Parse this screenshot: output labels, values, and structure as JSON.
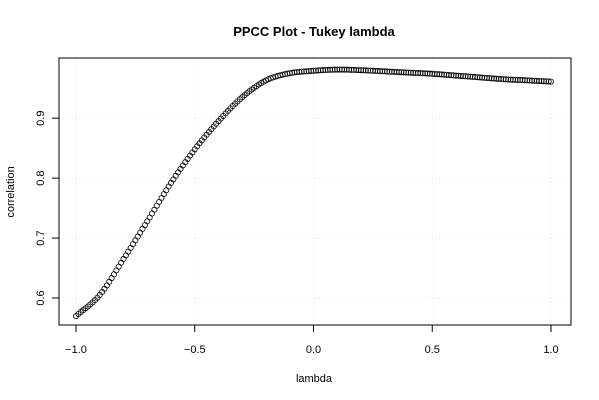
{
  "chart_data": {
    "type": "scatter",
    "title": "PPCC Plot - Tukey lambda",
    "xlabel": "lambda",
    "ylabel": "correlation",
    "xlim": [
      -1.0,
      1.0
    ],
    "ylim": [
      0.57,
      0.982
    ],
    "x_ticks": [
      -1.0,
      -0.5,
      0.0,
      0.5,
      1.0
    ],
    "x_tick_labels": [
      "−1.0",
      "−0.5",
      "0.0",
      "0.5",
      "1.0"
    ],
    "y_ticks": [
      0.6,
      0.7,
      0.8,
      0.9
    ],
    "y_tick_labels": [
      "0.6",
      "0.7",
      "0.8",
      "0.9"
    ],
    "grid": true,
    "marker": "open-circle",
    "series": [
      {
        "points": [
          [
            -1.0,
            0.57
          ],
          [
            -0.9,
            0.605
          ],
          [
            -0.8,
            0.665
          ],
          [
            -0.7,
            0.728
          ],
          [
            -0.6,
            0.792
          ],
          [
            -0.5,
            0.848
          ],
          [
            -0.4,
            0.895
          ],
          [
            -0.3,
            0.935
          ],
          [
            -0.2,
            0.963
          ],
          [
            -0.1,
            0.975
          ],
          [
            0.0,
            0.979
          ],
          [
            0.1,
            0.981
          ],
          [
            0.2,
            0.98
          ],
          [
            0.3,
            0.978
          ],
          [
            0.4,
            0.976
          ],
          [
            0.5,
            0.974
          ],
          [
            0.6,
            0.971
          ],
          [
            0.7,
            0.968
          ],
          [
            0.8,
            0.965
          ],
          [
            0.9,
            0.963
          ],
          [
            1.0,
            0.961
          ]
        ]
      }
    ]
  }
}
